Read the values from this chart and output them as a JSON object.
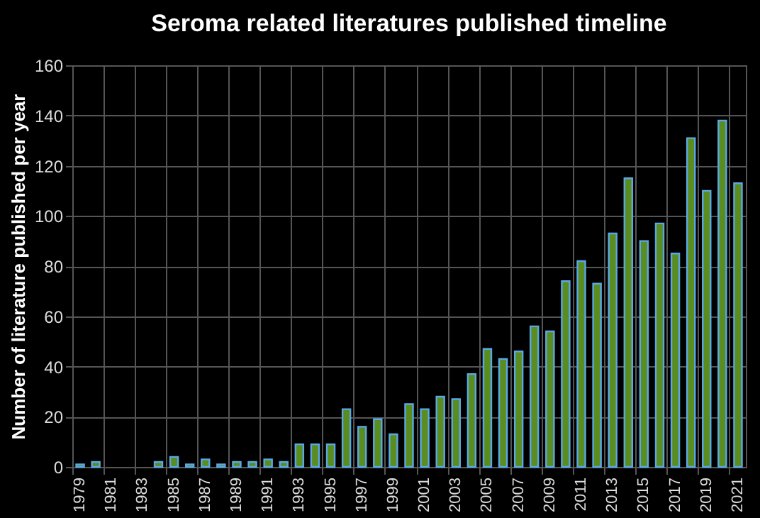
{
  "chart_data": {
    "type": "bar",
    "title": "Seroma related literatures published timeline",
    "ylabel": "Number of literature published per year",
    "categories": [
      "1979",
      null,
      "1981",
      null,
      "1983",
      null,
      "1985",
      null,
      "1987",
      null,
      "1989",
      null,
      "1991",
      null,
      "1993",
      null,
      "1995",
      null,
      "1997",
      null,
      "1999",
      null,
      "2001",
      null,
      "2003",
      null,
      "2005",
      null,
      "2007",
      null,
      "2009",
      null,
      "2011",
      null,
      "2013",
      null,
      "2015",
      null,
      "2017",
      null,
      "2019",
      null,
      "2021"
    ],
    "values": [
      1,
      2,
      0,
      0,
      0,
      2,
      4,
      1,
      3,
      1,
      2,
      2,
      3,
      2,
      9,
      9,
      9,
      23,
      16,
      19,
      13,
      25,
      23,
      28,
      27,
      37,
      47,
      43,
      46,
      56,
      54,
      74,
      82,
      73,
      93,
      115,
      90,
      97,
      85,
      131,
      110,
      138,
      113
    ],
    "color": "#5b8c1f",
    "ylim": [
      0,
      160
    ],
    "yticks": [
      0,
      20,
      40,
      60,
      80,
      100,
      120,
      140,
      160
    ],
    "grid": true
  }
}
